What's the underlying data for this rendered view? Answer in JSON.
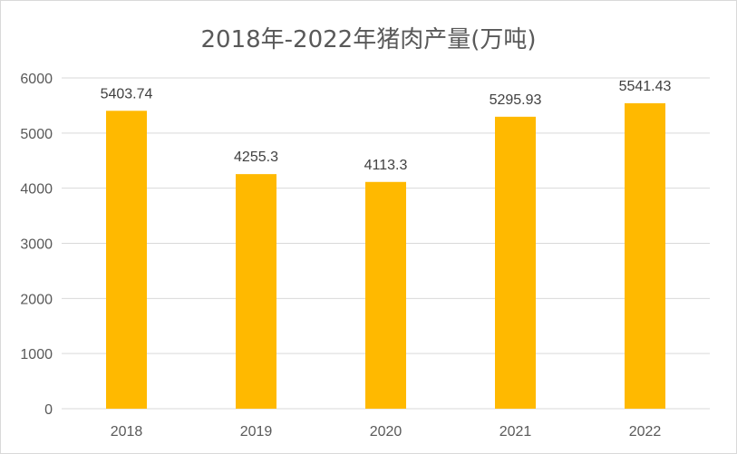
{
  "chart_data": {
    "type": "bar",
    "title": "2018年-2022年猪肉产量(万吨)",
    "categories": [
      "2018",
      "2019",
      "2020",
      "2021",
      "2022"
    ],
    "values": [
      5403.74,
      4255.3,
      4113.3,
      5295.93,
      5541.43
    ],
    "data_labels": [
      "5403.74",
      "4255.3",
      "4113.3",
      "5295.93",
      "5541.43"
    ],
    "y_ticks": [
      "0",
      "1000",
      "2000",
      "3000",
      "4000",
      "5000",
      "6000"
    ],
    "ylim": [
      0,
      6000
    ],
    "xlabel": "",
    "ylabel": "",
    "grid": true,
    "legend": "none",
    "bar_color": "#ffb900"
  }
}
